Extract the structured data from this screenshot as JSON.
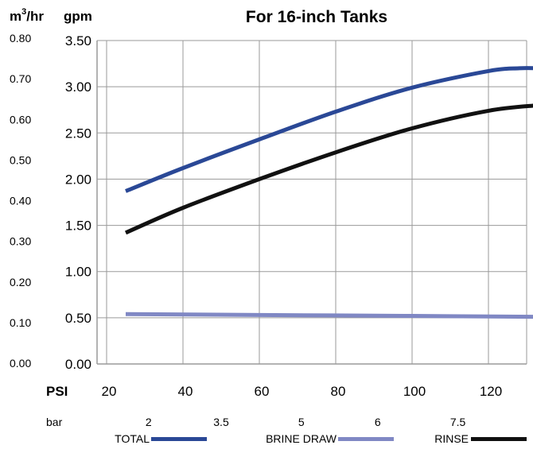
{
  "chart_data": {
    "type": "line",
    "title": "For 16-inch Tanks",
    "colors": {
      "total": "#2a4896",
      "brine_draw": "#8088c4",
      "rinse": "#111111",
      "title": "#2a4896",
      "grid": "#9a9a9a"
    },
    "units": {
      "metric_prefix": "m",
      "metric_exponent": "3",
      "metric_suffix": "/hr",
      "imperial": "gpm"
    },
    "x_axis": {
      "label": "PSI",
      "range": [
        20,
        133
      ],
      "ticks": [
        20,
        40,
        60,
        80,
        100,
        120
      ]
    },
    "bar_axis": {
      "label": "bar",
      "ticks": [
        {
          "label": "2",
          "psi": 31
        },
        {
          "label": "3.5",
          "psi": 50
        },
        {
          "label": "5",
          "psi": 71
        },
        {
          "label": "6",
          "psi": 91
        },
        {
          "label": "7.5",
          "psi": 112
        }
      ]
    },
    "y_axis": {
      "range": [
        0,
        3.5
      ],
      "ticks": [
        "0.00",
        "0.50",
        "1.00",
        "1.50",
        "2.00",
        "2.50",
        "3.00",
        "3.50"
      ]
    },
    "y_axis_metric": {
      "ticks": [
        "0.00",
        "0.10",
        "0.20",
        "0.30",
        "0.40",
        "0.50",
        "0.60",
        "0.70",
        "0.80"
      ]
    },
    "grid": true,
    "legend_position": "bottom",
    "series": [
      {
        "key": "total",
        "name": "TOTAL",
        "x": [
          25,
          40,
          60,
          80,
          100,
          120,
          128,
          133
        ],
        "y": [
          1.87,
          2.12,
          2.43,
          2.73,
          2.99,
          3.17,
          3.2,
          3.2
        ]
      },
      {
        "key": "brine_draw",
        "name": "BRINE DRAW",
        "x": [
          25,
          60,
          100,
          133
        ],
        "y": [
          0.54,
          0.53,
          0.52,
          0.51
        ]
      },
      {
        "key": "rinse",
        "name": "RINSE",
        "x": [
          25,
          40,
          60,
          80,
          100,
          120,
          133
        ],
        "y": [
          1.42,
          1.69,
          2.0,
          2.29,
          2.55,
          2.74,
          2.8
        ]
      }
    ]
  }
}
